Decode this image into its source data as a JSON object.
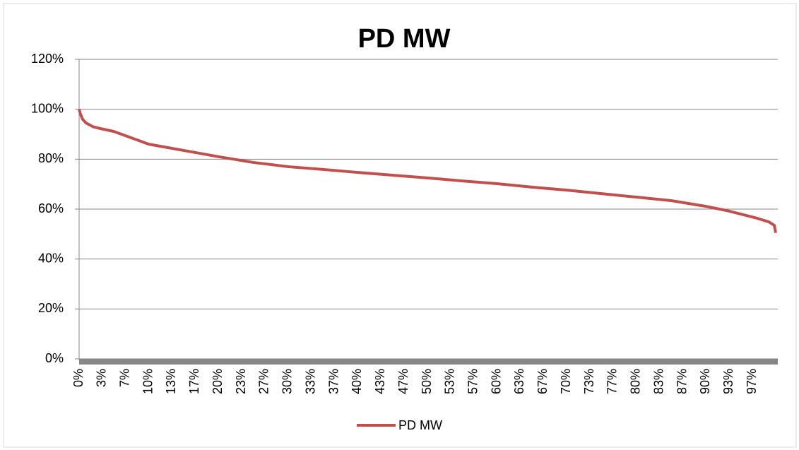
{
  "chart_data": {
    "type": "line",
    "title": "PD MW",
    "x": [
      0,
      0.2,
      0.5,
      1,
      2,
      3,
      5,
      10,
      15,
      20,
      25,
      30,
      35,
      40,
      45,
      50,
      55,
      60,
      65,
      70,
      75,
      80,
      85,
      90,
      93,
      95,
      97,
      99,
      99.8,
      100
    ],
    "series": [
      {
        "name": "PD MW",
        "color": "#c0504d",
        "values": [
          100,
          98,
          96,
          94.5,
          93,
          92.3,
          91.1,
          86,
          83.5,
          81,
          78.7,
          77,
          75.9,
          74.7,
          73.6,
          72.5,
          71.3,
          70.2,
          68.8,
          67.6,
          66.2,
          64.8,
          63.4,
          61.1,
          59.4,
          58,
          56.6,
          54.9,
          53.5,
          50.5
        ]
      }
    ],
    "xlim": [
      0,
      100
    ],
    "xticks": [
      {
        "value": 0,
        "label": "0%"
      },
      {
        "value": 3.333,
        "label": "3%"
      },
      {
        "value": 6.667,
        "label": "7%"
      },
      {
        "value": 10,
        "label": "10%"
      },
      {
        "value": 13.333,
        "label": "13%"
      },
      {
        "value": 16.667,
        "label": "17%"
      },
      {
        "value": 20,
        "label": "20%"
      },
      {
        "value": 23.333,
        "label": "23%"
      },
      {
        "value": 26.667,
        "label": "27%"
      },
      {
        "value": 30,
        "label": "30%"
      },
      {
        "value": 33.333,
        "label": "33%"
      },
      {
        "value": 36.667,
        "label": "37%"
      },
      {
        "value": 40,
        "label": "40%"
      },
      {
        "value": 43.333,
        "label": "43%"
      },
      {
        "value": 46.667,
        "label": "47%"
      },
      {
        "value": 50,
        "label": "50%"
      },
      {
        "value": 53.333,
        "label": "53%"
      },
      {
        "value": 56.667,
        "label": "57%"
      },
      {
        "value": 60,
        "label": "60%"
      },
      {
        "value": 63.333,
        "label": "63%"
      },
      {
        "value": 66.667,
        "label": "67%"
      },
      {
        "value": 70,
        "label": "70%"
      },
      {
        "value": 73.333,
        "label": "73%"
      },
      {
        "value": 76.667,
        "label": "77%"
      },
      {
        "value": 80,
        "label": "80%"
      },
      {
        "value": 83.333,
        "label": "83%"
      },
      {
        "value": 86.667,
        "label": "87%"
      },
      {
        "value": 90,
        "label": "90%"
      },
      {
        "value": 93.333,
        "label": "93%"
      },
      {
        "value": 96.667,
        "label": "97%"
      }
    ],
    "ylim": [
      0,
      120
    ],
    "yticks": [
      {
        "value": 0,
        "label": "0%"
      },
      {
        "value": 20,
        "label": "20%"
      },
      {
        "value": 40,
        "label": "40%"
      },
      {
        "value": 60,
        "label": "60%"
      },
      {
        "value": 80,
        "label": "80%"
      },
      {
        "value": 100,
        "label": "100%"
      },
      {
        "value": 120,
        "label": "120%"
      }
    ],
    "grid": true,
    "legend": "bottom"
  }
}
